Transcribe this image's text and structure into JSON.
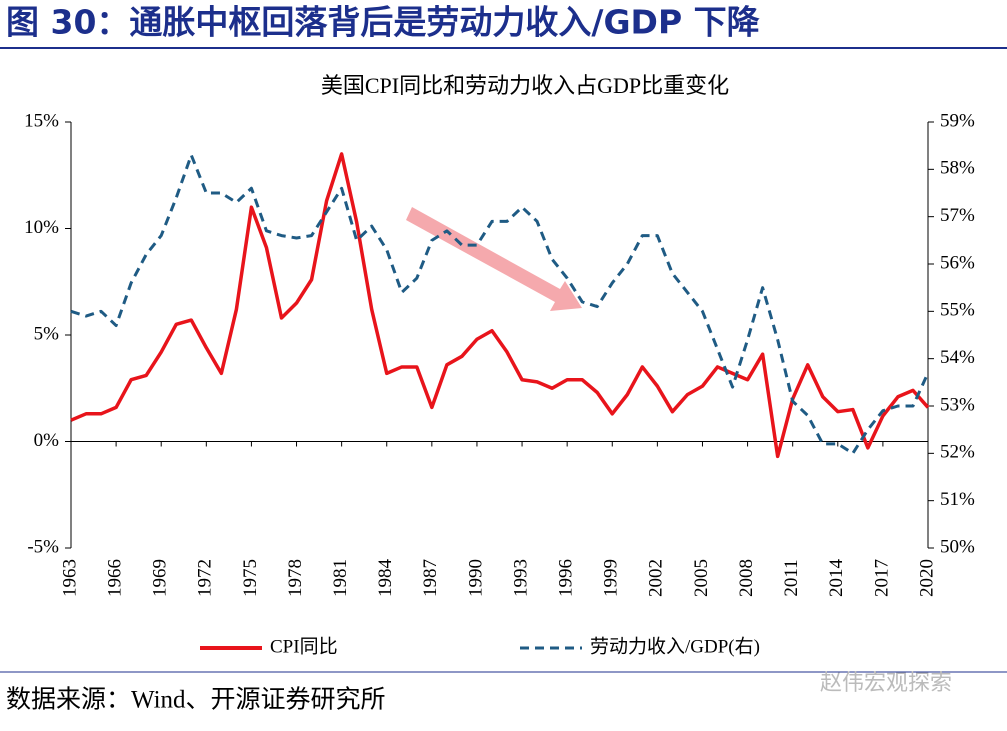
{
  "header": "图 30：通胀中枢回落背后是劳动力收入/GDP 下降",
  "source": "数据来源：Wind、开源证券研究所",
  "watermark": "赵伟宏观探索",
  "chart_data": {
    "type": "line",
    "title": "美国CPI同比和劳动力收入占GDP比重变化",
    "x": [
      1963,
      1964,
      1965,
      1966,
      1967,
      1968,
      1969,
      1970,
      1971,
      1972,
      1973,
      1974,
      1975,
      1976,
      1977,
      1978,
      1979,
      1980,
      1981,
      1982,
      1983,
      1984,
      1985,
      1986,
      1987,
      1988,
      1989,
      1990,
      1991,
      1992,
      1993,
      1994,
      1995,
      1996,
      1997,
      1998,
      1999,
      2000,
      2001,
      2002,
      2003,
      2004,
      2005,
      2006,
      2007,
      2008,
      2009,
      2010,
      2011,
      2012,
      2013,
      2014,
      2015,
      2016,
      2017,
      2018,
      2019,
      2020
    ],
    "xlim": [
      1963,
      2020
    ],
    "xticks": [
      1963,
      1966,
      1969,
      1972,
      1975,
      1978,
      1981,
      1984,
      1987,
      1990,
      1993,
      1996,
      1999,
      2002,
      2005,
      2008,
      2011,
      2014,
      2017,
      2020
    ],
    "series": [
      {
        "name": "CPI同比",
        "color": "#e8141b",
        "values": [
          1.0,
          1.3,
          1.3,
          1.6,
          2.9,
          3.1,
          4.2,
          5.5,
          5.7,
          4.4,
          3.2,
          6.2,
          11.0,
          9.1,
          5.8,
          6.5,
          7.6,
          11.3,
          13.5,
          10.3,
          6.2,
          3.2,
          3.5,
          3.5,
          1.6,
          3.6,
          4.0,
          4.8,
          5.2,
          4.2,
          2.9,
          2.8,
          2.5,
          2.9,
          2.9,
          2.3,
          1.3,
          2.2,
          3.5,
          2.6,
          1.4,
          2.2,
          2.6,
          3.5,
          3.2,
          2.9,
          4.1,
          -0.7,
          2.0,
          3.6,
          2.1,
          1.4,
          1.5,
          -0.3,
          1.2,
          2.1,
          2.4,
          1.6
        ]
      },
      {
        "name": "劳动力收入/GDP(右)",
        "color": "#1f5b84",
        "axis": "y2",
        "dashed": true,
        "values": [
          55.0,
          54.9,
          55.0,
          54.7,
          55.6,
          56.2,
          56.6,
          57.4,
          58.3,
          57.5,
          57.5,
          57.3,
          57.6,
          56.7,
          56.6,
          56.55,
          56.6,
          57.1,
          57.6,
          56.5,
          56.8,
          56.3,
          55.4,
          55.7,
          56.5,
          56.7,
          56.4,
          56.4,
          56.9,
          56.9,
          57.2,
          56.9,
          56.1,
          55.7,
          55.2,
          55.1,
          55.6,
          56.0,
          56.6,
          56.6,
          55.8,
          55.4,
          55.0,
          54.2,
          53.4,
          54.4,
          55.5,
          54.4,
          53.1,
          52.8,
          52.2,
          52.2,
          52.0,
          52.5,
          52.9,
          53.0,
          53.0,
          53.7
        ]
      }
    ],
    "ylim": [
      -5,
      15
    ],
    "yticks": [
      {
        "value": -5,
        "label": "-5%"
      },
      {
        "value": 0,
        "label": "0%"
      },
      {
        "value": 5,
        "label": "5%"
      },
      {
        "value": 10,
        "label": "10%"
      },
      {
        "value": 15,
        "label": "15%"
      }
    ],
    "y2lim": [
      50,
      59
    ],
    "y2ticks": [
      {
        "value": 50,
        "label": "50%"
      },
      {
        "value": 51,
        "label": "51%"
      },
      {
        "value": 52,
        "label": "52%"
      },
      {
        "value": 53,
        "label": "53%"
      },
      {
        "value": 54,
        "label": "54%"
      },
      {
        "value": 55,
        "label": "55%"
      },
      {
        "value": 56,
        "label": "56%"
      },
      {
        "value": 57,
        "label": "57%"
      },
      {
        "value": 58,
        "label": "58%"
      },
      {
        "value": 59,
        "label": "59%"
      }
    ]
  }
}
